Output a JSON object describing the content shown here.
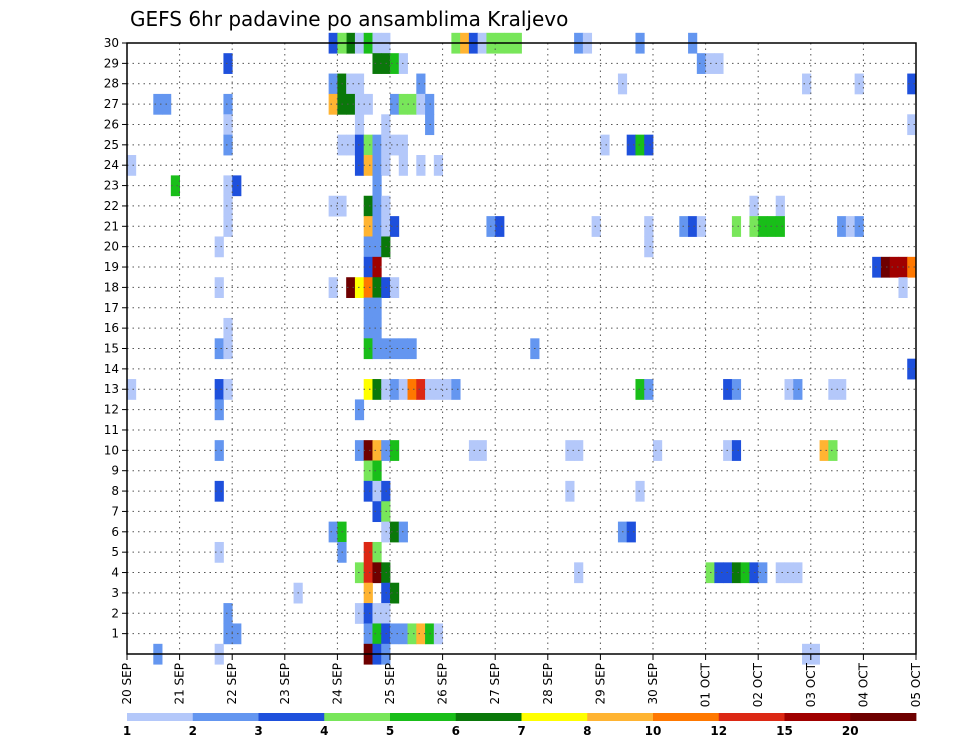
{
  "chart_data": {
    "type": "heatmap",
    "title": "GEFS 6hr padavine po ansamblima Kraljevo",
    "x_unit": "6-hour step",
    "y_unit": "ensemble member",
    "x_range": [
      0,
      90
    ],
    "y_range": [
      0,
      30
    ],
    "grid": true,
    "x_tick_labels": [
      "20 SEP",
      "21 SEP",
      "22 SEP",
      "23 SEP",
      "24 SEP",
      "25 SEP",
      "26 SEP",
      "27 SEP",
      "28 SEP",
      "29 SEP",
      "30 SEP",
      "01 OCT",
      "02 OCT",
      "03 OCT",
      "04 OCT",
      "05 OCT"
    ],
    "y_tick_labels": [
      "1",
      "2",
      "3",
      "4",
      "5",
      "6",
      "7",
      "8",
      "9",
      "10",
      "11",
      "12",
      "13",
      "14",
      "15",
      "16",
      "17",
      "18",
      "19",
      "20",
      "21",
      "22",
      "23",
      "24",
      "25",
      "26",
      "27",
      "28",
      "29",
      "30"
    ],
    "colorbar": {
      "labels": [
        "1",
        "2",
        "3",
        "4",
        "5",
        "6",
        "7",
        "8",
        "10",
        "12",
        "15",
        "20"
      ],
      "colors": [
        "#b4c8fa",
        "#6496f0",
        "#1e50dc",
        "#78e65a",
        "#19be19",
        "#0a780a",
        "#ffff00",
        "#ffb432",
        "#ff7800",
        "#dc2814",
        "#a00000",
        "#6e0000"
      ]
    },
    "cells": [
      [
        23,
        30,
        3
      ],
      [
        25,
        30,
        6
      ],
      [
        24,
        30,
        4
      ],
      [
        26,
        30,
        1
      ],
      [
        27,
        30,
        5
      ],
      [
        28,
        30,
        1
      ],
      [
        29,
        30,
        1
      ],
      [
        37,
        30,
        4
      ],
      [
        38,
        30,
        8
      ],
      [
        39,
        30,
        3
      ],
      [
        40,
        30,
        1
      ],
      [
        41,
        30,
        4
      ],
      [
        42,
        30,
        4
      ],
      [
        43,
        30,
        4
      ],
      [
        44,
        30,
        4
      ],
      [
        51,
        30,
        2
      ],
      [
        52,
        30,
        1
      ],
      [
        58,
        30,
        2
      ],
      [
        64,
        30,
        2
      ],
      [
        11,
        29,
        3
      ],
      [
        28,
        29,
        6
      ],
      [
        29,
        29,
        6
      ],
      [
        30,
        29,
        5
      ],
      [
        31,
        29,
        1
      ],
      [
        65,
        29,
        2
      ],
      [
        66,
        29,
        1
      ],
      [
        67,
        29,
        1
      ],
      [
        23,
        28,
        2
      ],
      [
        24,
        28,
        6
      ],
      [
        25,
        28,
        1
      ],
      [
        26,
        28,
        1
      ],
      [
        33,
        28,
        2
      ],
      [
        56,
        28,
        1
      ],
      [
        77,
        28,
        1
      ],
      [
        83,
        28,
        1
      ],
      [
        89,
        28,
        3
      ],
      [
        3,
        27,
        2
      ],
      [
        4,
        27,
        2
      ],
      [
        11,
        27,
        2
      ],
      [
        23,
        27,
        8
      ],
      [
        24,
        27,
        6
      ],
      [
        25,
        27,
        6
      ],
      [
        26,
        27,
        1
      ],
      [
        27,
        27,
        1
      ],
      [
        30,
        27,
        2
      ],
      [
        31,
        27,
        4
      ],
      [
        32,
        27,
        4
      ],
      [
        33,
        27,
        1
      ],
      [
        34,
        27,
        2
      ],
      [
        11,
        26,
        1
      ],
      [
        26,
        26,
        1
      ],
      [
        29,
        26,
        1
      ],
      [
        34,
        26,
        2
      ],
      [
        89,
        26,
        1
      ],
      [
        11,
        25,
        2
      ],
      [
        24,
        25,
        1
      ],
      [
        25,
        25,
        1
      ],
      [
        26,
        25,
        3
      ],
      [
        27,
        25,
        4
      ],
      [
        28,
        25,
        2
      ],
      [
        29,
        25,
        1
      ],
      [
        30,
        25,
        1
      ],
      [
        31,
        25,
        1
      ],
      [
        54,
        25,
        1
      ],
      [
        57,
        25,
        3
      ],
      [
        58,
        25,
        5
      ],
      [
        59,
        25,
        3
      ],
      [
        0,
        24,
        1
      ],
      [
        26,
        24,
        3
      ],
      [
        27,
        24,
        8
      ],
      [
        28,
        24,
        2
      ],
      [
        29,
        24,
        1
      ],
      [
        31,
        24,
        1
      ],
      [
        33,
        24,
        1
      ],
      [
        35,
        24,
        1
      ],
      [
        5,
        23,
        5
      ],
      [
        11,
        23,
        1
      ],
      [
        12,
        23,
        3
      ],
      [
        28,
        23,
        2
      ],
      [
        11,
        22,
        1
      ],
      [
        23,
        22,
        1
      ],
      [
        24,
        22,
        1
      ],
      [
        27,
        22,
        6
      ],
      [
        28,
        22,
        2
      ],
      [
        29,
        22,
        1
      ],
      [
        71,
        22,
        1
      ],
      [
        74,
        22,
        1
      ],
      [
        11,
        21,
        1
      ],
      [
        27,
        21,
        8
      ],
      [
        28,
        21,
        2
      ],
      [
        29,
        21,
        1
      ],
      [
        30,
        21,
        3
      ],
      [
        41,
        21,
        2
      ],
      [
        42,
        21,
        3
      ],
      [
        53,
        21,
        1
      ],
      [
        59,
        21,
        1
      ],
      [
        63,
        21,
        2
      ],
      [
        64,
        21,
        3
      ],
      [
        65,
        21,
        1
      ],
      [
        69,
        21,
        4
      ],
      [
        71,
        21,
        4
      ],
      [
        72,
        21,
        5
      ],
      [
        73,
        21,
        5
      ],
      [
        74,
        21,
        5
      ],
      [
        81,
        21,
        2
      ],
      [
        82,
        21,
        1
      ],
      [
        83,
        21,
        2
      ],
      [
        10,
        20,
        1
      ],
      [
        27,
        20,
        2
      ],
      [
        28,
        20,
        2
      ],
      [
        29,
        20,
        6
      ],
      [
        59,
        20,
        1
      ],
      [
        27,
        19,
        3
      ],
      [
        28,
        19,
        11
      ],
      [
        85,
        19,
        3
      ],
      [
        86,
        19,
        12
      ],
      [
        87,
        19,
        11
      ],
      [
        88,
        19,
        11
      ],
      [
        89,
        19,
        9
      ],
      [
        10,
        18,
        1
      ],
      [
        23,
        18,
        1
      ],
      [
        25,
        18,
        12
      ],
      [
        26,
        18,
        7
      ],
      [
        27,
        18,
        9
      ],
      [
        28,
        18,
        6
      ],
      [
        29,
        18,
        3
      ],
      [
        30,
        18,
        1
      ],
      [
        88,
        18,
        1
      ],
      [
        27,
        17,
        2
      ],
      [
        28,
        17,
        2
      ],
      [
        11,
        16,
        1
      ],
      [
        27,
        16,
        2
      ],
      [
        28,
        16,
        2
      ],
      [
        10,
        15,
        2
      ],
      [
        11,
        15,
        1
      ],
      [
        27,
        15,
        5
      ],
      [
        28,
        15,
        2
      ],
      [
        29,
        15,
        2
      ],
      [
        30,
        15,
        2
      ],
      [
        31,
        15,
        2
      ],
      [
        32,
        15,
        2
      ],
      [
        46,
        15,
        2
      ],
      [
        89,
        14,
        3
      ],
      [
        0,
        13,
        1
      ],
      [
        10,
        13,
        3
      ],
      [
        11,
        13,
        1
      ],
      [
        27,
        13,
        7
      ],
      [
        28,
        13,
        6
      ],
      [
        29,
        13,
        1
      ],
      [
        30,
        13,
        2
      ],
      [
        31,
        13,
        1
      ],
      [
        32,
        13,
        9
      ],
      [
        33,
        13,
        10
      ],
      [
        34,
        13,
        1
      ],
      [
        35,
        13,
        1
      ],
      [
        36,
        13,
        1
      ],
      [
        37,
        13,
        2
      ],
      [
        58,
        13,
        5
      ],
      [
        59,
        13,
        2
      ],
      [
        68,
        13,
        3
      ],
      [
        69,
        13,
        2
      ],
      [
        75,
        13,
        1
      ],
      [
        76,
        13,
        2
      ],
      [
        80,
        13,
        1
      ],
      [
        81,
        13,
        1
      ],
      [
        10,
        12,
        2
      ],
      [
        26,
        12,
        2
      ],
      [
        10,
        10,
        2
      ],
      [
        26,
        10,
        2
      ],
      [
        27,
        10,
        12
      ],
      [
        28,
        10,
        8
      ],
      [
        29,
        10,
        2
      ],
      [
        30,
        10,
        5
      ],
      [
        39,
        10,
        1
      ],
      [
        40,
        10,
        1
      ],
      [
        50,
        10,
        1
      ],
      [
        51,
        10,
        1
      ],
      [
        60,
        10,
        1
      ],
      [
        68,
        10,
        1
      ],
      [
        69,
        10,
        3
      ],
      [
        79,
        10,
        8
      ],
      [
        80,
        10,
        4
      ],
      [
        27,
        9,
        4
      ],
      [
        28,
        9,
        5
      ],
      [
        10,
        8,
        3
      ],
      [
        27,
        8,
        3
      ],
      [
        28,
        8,
        1
      ],
      [
        29,
        8,
        3
      ],
      [
        50,
        8,
        1
      ],
      [
        58,
        8,
        1
      ],
      [
        28,
        7,
        3
      ],
      [
        29,
        7,
        4
      ],
      [
        23,
        6,
        2
      ],
      [
        24,
        6,
        5
      ],
      [
        29,
        6,
        1
      ],
      [
        30,
        6,
        6
      ],
      [
        31,
        6,
        2
      ],
      [
        56,
        6,
        2
      ],
      [
        57,
        6,
        3
      ],
      [
        10,
        5,
        1
      ],
      [
        24,
        5,
        2
      ],
      [
        27,
        5,
        10
      ],
      [
        28,
        5,
        4
      ],
      [
        26,
        4,
        4
      ],
      [
        27,
        4,
        10
      ],
      [
        28,
        4,
        12
      ],
      [
        29,
        4,
        6
      ],
      [
        51,
        4,
        1
      ],
      [
        66,
        4,
        4
      ],
      [
        67,
        4,
        3
      ],
      [
        68,
        4,
        3
      ],
      [
        69,
        4,
        6
      ],
      [
        70,
        4,
        5
      ],
      [
        71,
        4,
        3
      ],
      [
        72,
        4,
        2
      ],
      [
        74,
        4,
        1
      ],
      [
        75,
        4,
        1
      ],
      [
        76,
        4,
        1
      ],
      [
        19,
        3,
        1
      ],
      [
        27,
        3,
        8
      ],
      [
        29,
        3,
        3
      ],
      [
        30,
        3,
        6
      ],
      [
        11,
        2,
        2
      ],
      [
        26,
        2,
        1
      ],
      [
        27,
        2,
        3
      ],
      [
        28,
        2,
        1
      ],
      [
        29,
        2,
        1
      ],
      [
        11,
        1,
        2
      ],
      [
        12,
        1,
        2
      ],
      [
        27,
        1,
        2
      ],
      [
        28,
        1,
        5
      ],
      [
        29,
        1,
        3
      ],
      [
        30,
        1,
        2
      ],
      [
        31,
        1,
        2
      ],
      [
        32,
        1,
        4
      ],
      [
        33,
        1,
        8
      ],
      [
        34,
        1,
        5
      ],
      [
        35,
        1,
        1
      ],
      [
        3,
        0,
        2
      ],
      [
        10,
        0,
        1
      ],
      [
        27,
        0,
        12
      ],
      [
        28,
        0,
        3
      ],
      [
        29,
        0,
        2
      ],
      [
        77,
        0,
        1
      ],
      [
        78,
        0,
        1
      ]
    ]
  }
}
